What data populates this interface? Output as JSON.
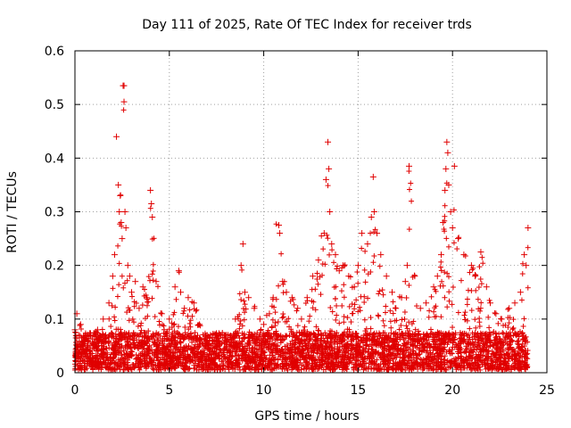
{
  "chart_data": {
    "type": "scatter",
    "title": "Day 111 of 2025, Rate Of TEC Index for receiver trds",
    "xlabel": "GPS time / hours",
    "ylabel": "ROTI / TECUs",
    "xlim": [
      0,
      25
    ],
    "ylim": [
      0,
      0.6
    ],
    "xticks": [
      0,
      5,
      10,
      15,
      20,
      25
    ],
    "xtick_labels": [
      "0",
      "5",
      "10",
      "15",
      "20",
      "25"
    ],
    "yticks": [
      0,
      0.1,
      0.2,
      0.3,
      0.4,
      0.5,
      0.6
    ],
    "ytick_labels": [
      "0",
      "0.1",
      "0.2",
      "0.3",
      "0.4",
      "0.5",
      "0.6"
    ],
    "grid": true,
    "marker": "plus",
    "color": "#e00000",
    "series": [
      {
        "x": [
          0.0,
          0.1,
          0.2,
          0.3,
          0.5,
          0.8,
          1.0,
          1.2,
          1.5,
          1.8,
          2.0,
          2.1,
          2.2,
          2.3,
          2.35,
          2.4,
          2.45,
          2.5,
          2.55,
          2.6,
          2.6,
          2.65,
          2.7,
          2.8,
          2.9,
          3.0,
          3.2,
          3.4,
          3.6,
          3.8,
          4.0,
          4.05,
          4.1,
          4.3,
          4.6,
          5.0,
          5.3,
          5.5,
          5.6,
          5.8,
          6.0,
          6.3,
          6.6,
          7.0,
          7.5,
          8.0,
          8.5,
          8.8,
          8.9,
          9.0,
          9.2,
          9.5,
          9.8,
          10.0,
          10.3,
          10.5,
          10.8,
          10.85,
          11.0,
          11.2,
          11.5,
          11.8,
          12.0,
          12.3,
          12.6,
          12.9,
          13.2,
          13.3,
          13.4,
          13.45,
          13.5,
          13.6,
          13.8,
          14.0,
          14.2,
          14.5,
          14.8,
          15.0,
          15.2,
          15.5,
          15.7,
          15.8,
          15.85,
          16.0,
          16.2,
          16.5,
          16.8,
          17.0,
          17.3,
          17.5,
          17.6,
          17.7,
          18.0,
          18.3,
          18.6,
          19.0,
          19.2,
          19.4,
          19.5,
          19.6,
          19.65,
          19.7,
          19.75,
          19.8,
          19.9,
          20.0,
          20.1,
          20.3,
          20.6,
          21.0,
          21.2,
          21.5,
          21.8,
          22.0,
          22.3,
          22.6,
          23.0,
          23.3,
          23.6,
          23.8,
          23.9,
          24.0
        ],
        "y": [
          0.08,
          0.11,
          0.07,
          0.09,
          0.06,
          0.05,
          0.07,
          0.08,
          0.1,
          0.13,
          0.18,
          0.22,
          0.44,
          0.35,
          0.3,
          0.33,
          0.28,
          0.25,
          0.535,
          0.535,
          0.505,
          0.3,
          0.27,
          0.2,
          0.18,
          0.15,
          0.17,
          0.12,
          0.16,
          0.14,
          0.34,
          0.315,
          0.29,
          0.17,
          0.11,
          0.1,
          0.16,
          0.19,
          0.15,
          0.12,
          0.14,
          0.13,
          0.09,
          0.07,
          0.05,
          0.06,
          0.1,
          0.2,
          0.24,
          0.15,
          0.14,
          0.12,
          0.1,
          0.09,
          0.11,
          0.14,
          0.275,
          0.26,
          0.17,
          0.15,
          0.14,
          0.12,
          0.1,
          0.14,
          0.18,
          0.21,
          0.26,
          0.36,
          0.43,
          0.38,
          0.3,
          0.24,
          0.22,
          0.19,
          0.2,
          0.18,
          0.16,
          0.2,
          0.26,
          0.24,
          0.29,
          0.365,
          0.3,
          0.26,
          0.22,
          0.18,
          0.15,
          0.12,
          0.14,
          0.17,
          0.2,
          0.385,
          0.18,
          0.12,
          0.13,
          0.16,
          0.18,
          0.22,
          0.28,
          0.34,
          0.38,
          0.43,
          0.41,
          0.35,
          0.3,
          0.27,
          0.385,
          0.25,
          0.22,
          0.2,
          0.18,
          0.225,
          0.16,
          0.13,
          0.11,
          0.1,
          0.12,
          0.13,
          0.15,
          0.22,
          0.2,
          0.27
        ]
      }
    ]
  }
}
